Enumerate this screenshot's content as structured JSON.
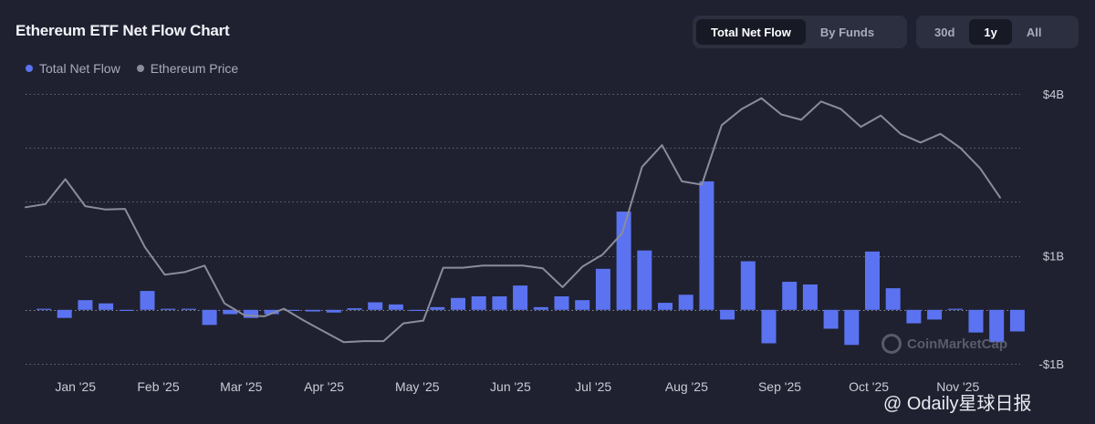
{
  "header": {
    "title": "Ethereum ETF Net Flow Chart",
    "view_toggle": [
      "Total Net Flow",
      "By Funds"
    ],
    "view_selected": "Total Net Flow",
    "range_toggle": [
      "30d",
      "1y",
      "All"
    ],
    "range_selected": "1y"
  },
  "legend": {
    "flow": "Total Net Flow",
    "price": "Ethereum Price"
  },
  "watermark": "CoinMarketCap",
  "credit": "@ Odaily星球日报",
  "colors": {
    "bar": "#5b73f0",
    "price_line": "#8a8d99",
    "grid": "#9aa0b0"
  },
  "chart_data": {
    "type": "bar",
    "title": "Ethereum ETF Net Flow Chart",
    "xlabel": "",
    "ylabel": "",
    "ylim": [
      -1,
      4
    ],
    "yticks": [
      {
        "value": 4,
        "label": "$4B"
      },
      {
        "value": 1,
        "label": "$1B"
      },
      {
        "value": -1,
        "label": "-$1B"
      }
    ],
    "grid_values": [
      4,
      3,
      2,
      1,
      0,
      -1
    ],
    "month_ticks": [
      {
        "label": "Jan '25",
        "index": 1
      },
      {
        "label": "Feb '25",
        "index": 5
      },
      {
        "label": "Mar '25",
        "index": 9
      },
      {
        "label": "Apr '25",
        "index": 13
      },
      {
        "label": "May '25",
        "index": 17.5
      },
      {
        "label": "Jun '25",
        "index": 22
      },
      {
        "label": "Jul '25",
        "index": 26
      },
      {
        "label": "Aug '25",
        "index": 30.5
      },
      {
        "label": "Sep '25",
        "index": 35
      },
      {
        "label": "Oct '25",
        "index": 39.3
      },
      {
        "label": "Nov '25",
        "index": 43.6
      }
    ],
    "series": [
      {
        "name": "Total Net Flow",
        "values": [
          0.02,
          -0.15,
          0.18,
          0.12,
          -0.02,
          0.35,
          0.02,
          0.02,
          -0.28,
          -0.08,
          -0.15,
          -0.08,
          0.0,
          -0.03,
          -0.05,
          0.03,
          0.14,
          0.1,
          -0.02,
          0.05,
          0.22,
          0.25,
          0.25,
          0.45,
          0.05,
          0.25,
          0.18,
          0.76,
          1.82,
          1.1,
          0.13,
          0.28,
          2.38,
          -0.18,
          0.9,
          -0.62,
          0.52,
          0.47,
          -0.35,
          -0.65,
          1.08,
          0.4,
          -0.25,
          -0.18,
          0.02,
          -0.42,
          -0.6,
          -0.4
        ]
      },
      {
        "name": "Ethereum Price",
        "values": [
          1.9,
          1.96,
          2.42,
          1.92,
          1.86,
          1.87,
          1.16,
          0.65,
          0.7,
          0.82,
          0.12,
          -0.1,
          -0.12,
          0.02,
          -0.2,
          -0.4,
          -0.6,
          -0.58,
          -0.58,
          -0.25,
          -0.2,
          0.78,
          0.78,
          0.82,
          0.82,
          0.82,
          0.77,
          0.42,
          0.8,
          1.02,
          1.42,
          2.65,
          3.05,
          2.38,
          2.32,
          3.42,
          3.72,
          3.92,
          3.62,
          3.52,
          3.86,
          3.72,
          3.39,
          3.6,
          3.26,
          3.1,
          3.26,
          3.0,
          2.62,
          2.08
        ]
      }
    ]
  }
}
